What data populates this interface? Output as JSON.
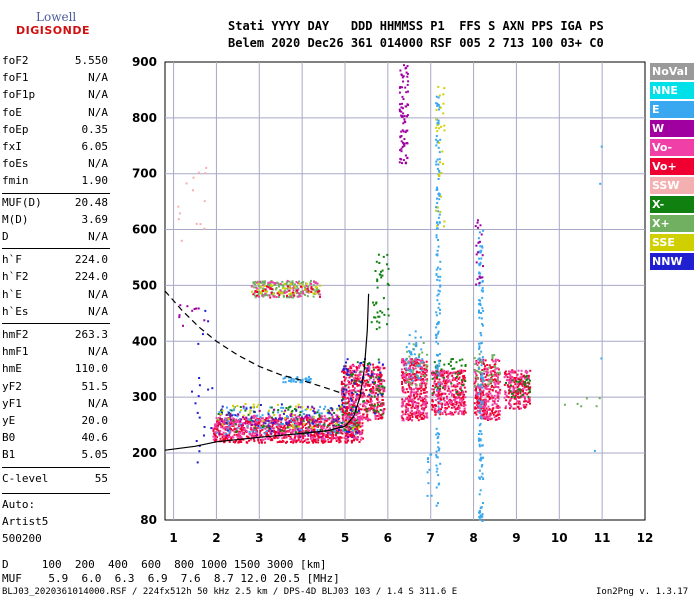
{
  "logo": {
    "line1": "Lowell",
    "line2": "DIGISONDE"
  },
  "header": {
    "line1": "Stati YYYY DAY   DDD HHMMSS P1  FFS S AXN PPS IGA PS",
    "line2": "Belem 2020 Dec26 361 014000 RSF 005 2 713 100 03+ C0"
  },
  "params": [
    {
      "k": "foF2",
      "v": "5.550"
    },
    {
      "k": "foF1",
      "v": "N/A"
    },
    {
      "k": "foF1p",
      "v": "N/A"
    },
    {
      "k": "foE",
      "v": "N/A"
    },
    {
      "k": "foEp",
      "v": "0.35"
    },
    {
      "k": "fxI",
      "v": "6.05"
    },
    {
      "k": "foEs",
      "v": "N/A"
    },
    {
      "k": "fmin",
      "v": "1.90"
    },
    {
      "k": "MUF(D)",
      "v": "20.48"
    },
    {
      "k": "M(D)",
      "v": "3.69"
    },
    {
      "k": "D",
      "v": "N/A"
    },
    {
      "k": "h`F",
      "v": "224.0"
    },
    {
      "k": "h`F2",
      "v": "224.0"
    },
    {
      "k": "h`E",
      "v": "N/A"
    },
    {
      "k": "h`Es",
      "v": "N/A"
    },
    {
      "k": "hmF2",
      "v": "263.3"
    },
    {
      "k": "hmF1",
      "v": "N/A"
    },
    {
      "k": "hmE",
      "v": "110.0"
    },
    {
      "k": "yF2",
      "v": "51.5"
    },
    {
      "k": "yF1",
      "v": "N/A"
    },
    {
      "k": "yE",
      "v": "20.0"
    },
    {
      "k": "B0",
      "v": "40.6"
    },
    {
      "k": "B1",
      "v": "5.05"
    },
    {
      "k": "C-level",
      "v": "55"
    }
  ],
  "auto": {
    "l1": "Auto:",
    "l2": "Artist5",
    "l3": "500200"
  },
  "footer": {
    "dline": "D     100  200  400  600  800 1000 1500 3000 [km]",
    "mufline": "MUF    5.9  6.0  6.3  6.9  7.6  8.7 12.0 20.5 [MHz]",
    "fileline": "BLJ03_2020361014000.RSF / 224fx512h 50 kHz 2.5 km / DPS-4D BLJ03 103 / 1.4 S 311.6 E",
    "version": "Ion2Png v. 1.3.17"
  },
  "legend": [
    {
      "label": "NoVal",
      "color": "#9a9a9a"
    },
    {
      "label": "NNE",
      "color": "#00e0e8"
    },
    {
      "label": "E",
      "color": "#3aa8f0"
    },
    {
      "label": "W",
      "color": "#a000a0"
    },
    {
      "label": "Vo-",
      "color": "#f040a8"
    },
    {
      "label": "Vo+",
      "color": "#f00030"
    },
    {
      "label": "SSW",
      "color": "#f4b0b0"
    },
    {
      "label": "X-",
      "color": "#108010"
    },
    {
      "label": "X+",
      "color": "#70b060"
    },
    {
      "label": "SSE",
      "color": "#d0d000"
    },
    {
      "label": "NNW",
      "color": "#2020d0"
    }
  ],
  "chart_data": {
    "type": "scatter",
    "xlabel": "",
    "ylabel": "",
    "xlim": [
      0.8,
      12.0
    ],
    "ylim": [
      80,
      900
    ],
    "grid": true,
    "x_ticks": [
      1,
      2,
      3,
      4,
      5,
      6,
      7,
      8,
      9,
      10,
      11,
      12
    ],
    "y_ticks": [
      200,
      300,
      400,
      500,
      600,
      700,
      800,
      900
    ],
    "y_tick_bottom": 80,
    "profile_solid": {
      "f": [
        0.8,
        1.5,
        2.0,
        3.0,
        4.0,
        4.6,
        5.0,
        5.2,
        5.35,
        5.45,
        5.52,
        5.55
      ],
      "h": [
        205,
        212,
        220,
        228,
        235,
        240,
        248,
        265,
        300,
        350,
        420,
        485
      ]
    },
    "profile_dashed": {
      "f": [
        0.8,
        1.2,
        1.6,
        2.0,
        2.5,
        3.0,
        3.5,
        4.0,
        4.5,
        5.0
      ],
      "h": [
        490,
        455,
        425,
        400,
        375,
        355,
        340,
        330,
        318,
        305
      ]
    },
    "clusters": [
      {
        "f0": 1.9,
        "f1": 5.4,
        "h0": 220,
        "h1": 265,
        "n": 700,
        "color": "#f00030"
      },
      {
        "f0": 1.9,
        "f1": 5.4,
        "h0": 225,
        "h1": 270,
        "n": 350,
        "color": "#f040a8"
      },
      {
        "f0": 2.0,
        "f1": 5.3,
        "h0": 235,
        "h1": 285,
        "n": 120,
        "color": "#3aa8f0"
      },
      {
        "f0": 2.0,
        "f1": 5.3,
        "h0": 235,
        "h1": 285,
        "n": 90,
        "color": "#108010"
      },
      {
        "f0": 2.0,
        "f1": 5.3,
        "h0": 235,
        "h1": 290,
        "n": 70,
        "color": "#2020d0"
      },
      {
        "f0": 2.0,
        "f1": 5.3,
        "h0": 240,
        "h1": 290,
        "n": 60,
        "color": "#d0d000"
      },
      {
        "f0": 2.0,
        "f1": 5.3,
        "h0": 230,
        "h1": 285,
        "n": 70,
        "color": "#a000a0"
      },
      {
        "f0": 2.8,
        "f1": 4.4,
        "h0": 480,
        "h1": 510,
        "n": 160,
        "color": "#70b060"
      },
      {
        "f0": 2.8,
        "f1": 4.4,
        "h0": 480,
        "h1": 510,
        "n": 60,
        "color": "#f040a8"
      },
      {
        "f0": 2.8,
        "f1": 4.4,
        "h0": 485,
        "h1": 505,
        "n": 40,
        "color": "#d0d000"
      },
      {
        "f0": 2.8,
        "f1": 4.4,
        "h0": 480,
        "h1": 500,
        "n": 30,
        "color": "#f00030"
      },
      {
        "f0": 3.5,
        "f1": 4.2,
        "h0": 328,
        "h1": 338,
        "n": 40,
        "color": "#3aa8f0"
      },
      {
        "f0": 4.9,
        "f1": 5.9,
        "h0": 260,
        "h1": 360,
        "n": 320,
        "color": "#f00030"
      },
      {
        "f0": 4.9,
        "f1": 5.9,
        "h0": 260,
        "h1": 360,
        "n": 160,
        "color": "#f040a8"
      },
      {
        "f0": 4.9,
        "f1": 5.9,
        "h0": 270,
        "h1": 370,
        "n": 60,
        "color": "#108010"
      },
      {
        "f0": 4.9,
        "f1": 5.9,
        "h0": 270,
        "h1": 370,
        "n": 50,
        "color": "#2020d0"
      },
      {
        "f0": 6.3,
        "f1": 6.9,
        "h0": 260,
        "h1": 370,
        "n": 260,
        "color": "#f00030"
      },
      {
        "f0": 6.3,
        "f1": 6.9,
        "h0": 260,
        "h1": 370,
        "n": 130,
        "color": "#f040a8"
      },
      {
        "f0": 6.4,
        "f1": 6.9,
        "h0": 320,
        "h1": 400,
        "n": 40,
        "color": "#70b060"
      },
      {
        "f0": 6.4,
        "f1": 6.8,
        "h0": 330,
        "h1": 420,
        "n": 40,
        "color": "#3aa8f0"
      },
      {
        "f0": 7.0,
        "f1": 7.8,
        "h0": 270,
        "h1": 350,
        "n": 240,
        "color": "#f00030"
      },
      {
        "f0": 7.0,
        "f1": 7.8,
        "h0": 270,
        "h1": 350,
        "n": 110,
        "color": "#f040a8"
      },
      {
        "f0": 7.0,
        "f1": 7.8,
        "h0": 300,
        "h1": 380,
        "n": 40,
        "color": "#108010"
      },
      {
        "f0": 8.0,
        "f1": 8.6,
        "h0": 260,
        "h1": 370,
        "n": 220,
        "color": "#f00030"
      },
      {
        "f0": 8.0,
        "f1": 8.6,
        "h0": 260,
        "h1": 370,
        "n": 110,
        "color": "#f040a8"
      },
      {
        "f0": 8.0,
        "f1": 8.6,
        "h0": 320,
        "h1": 380,
        "n": 40,
        "color": "#70b060"
      },
      {
        "f0": 8.7,
        "f1": 9.3,
        "h0": 280,
        "h1": 350,
        "n": 150,
        "color": "#f00030"
      },
      {
        "f0": 8.7,
        "f1": 9.3,
        "h0": 280,
        "h1": 350,
        "n": 80,
        "color": "#f040a8"
      },
      {
        "f0": 8.7,
        "f1": 9.3,
        "h0": 300,
        "h1": 340,
        "n": 30,
        "color": "#108010"
      },
      {
        "f0": 6.25,
        "f1": 6.45,
        "h0": 720,
        "h1": 900,
        "n": 80,
        "color": "#a000a0"
      },
      {
        "f0": 7.1,
        "f1": 7.2,
        "h0": 100,
        "h1": 840,
        "n": 150,
        "color": "#3aa8f0"
      },
      {
        "f0": 7.1,
        "f1": 7.3,
        "h0": 600,
        "h1": 860,
        "n": 30,
        "color": "#d0d000"
      },
      {
        "f0": 8.1,
        "f1": 8.2,
        "h0": 80,
        "h1": 600,
        "n": 140,
        "color": "#3aa8f0"
      },
      {
        "f0": 8.0,
        "f1": 8.2,
        "h0": 500,
        "h1": 620,
        "n": 20,
        "color": "#a000a0"
      },
      {
        "f0": 5.6,
        "f1": 6.0,
        "h0": 420,
        "h1": 560,
        "n": 40,
        "color": "#108010"
      },
      {
        "f0": 1.0,
        "f1": 1.8,
        "h0": 580,
        "h1": 720,
        "n": 14,
        "color": "#f4b0b0"
      },
      {
        "f0": 1.3,
        "f1": 1.9,
        "h0": 180,
        "h1": 480,
        "n": 20,
        "color": "#2020d0"
      },
      {
        "f0": 1.1,
        "f1": 1.9,
        "h0": 420,
        "h1": 470,
        "n": 10,
        "color": "#a000a0"
      },
      {
        "f0": 10.8,
        "f1": 11.1,
        "h0": 160,
        "h1": 840,
        "n": 4,
        "color": "#3aa8f0"
      },
      {
        "f0": 9.5,
        "f1": 11.0,
        "h0": 285,
        "h1": 300,
        "n": 6,
        "color": "#70b060"
      },
      {
        "f0": 6.9,
        "f1": 7.0,
        "h0": 100,
        "h1": 200,
        "n": 10,
        "color": "#3aa8f0"
      }
    ]
  }
}
